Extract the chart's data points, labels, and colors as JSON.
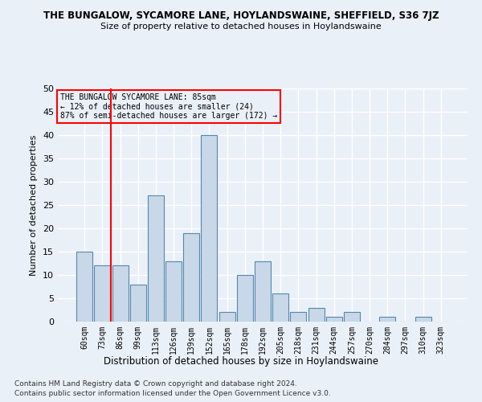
{
  "title": "THE BUNGALOW, SYCAMORE LANE, HOYLANDSWAINE, SHEFFIELD, S36 7JZ",
  "subtitle": "Size of property relative to detached houses in Hoylandswaine",
  "xlabel": "Distribution of detached houses by size in Hoylandswaine",
  "ylabel": "Number of detached properties",
  "categories": [
    "60sqm",
    "73sqm",
    "86sqm",
    "99sqm",
    "113sqm",
    "126sqm",
    "139sqm",
    "152sqm",
    "165sqm",
    "178sqm",
    "192sqm",
    "205sqm",
    "218sqm",
    "231sqm",
    "244sqm",
    "257sqm",
    "270sqm",
    "284sqm",
    "297sqm",
    "310sqm",
    "323sqm"
  ],
  "values": [
    15,
    12,
    12,
    8,
    27,
    13,
    19,
    40,
    2,
    10,
    13,
    6,
    2,
    3,
    1,
    2,
    0,
    1,
    0,
    1,
    0
  ],
  "bar_color": "#c8d8e8",
  "bar_edge_color": "#5588aa",
  "ylim": [
    0,
    50
  ],
  "yticks": [
    0,
    5,
    10,
    15,
    20,
    25,
    30,
    35,
    40,
    45,
    50
  ],
  "property_line_x": 1.5,
  "annotation_line1": "THE BUNGALOW SYCAMORE LANE: 85sqm",
  "annotation_line2": "← 12% of detached houses are smaller (24)",
  "annotation_line3": "87% of semi-detached houses are larger (172) →",
  "footnote1": "Contains HM Land Registry data © Crown copyright and database right 2024.",
  "footnote2": "Contains public sector information licensed under the Open Government Licence v3.0.",
  "background_color": "#eaf0f8",
  "grid_color": "#ffffff"
}
